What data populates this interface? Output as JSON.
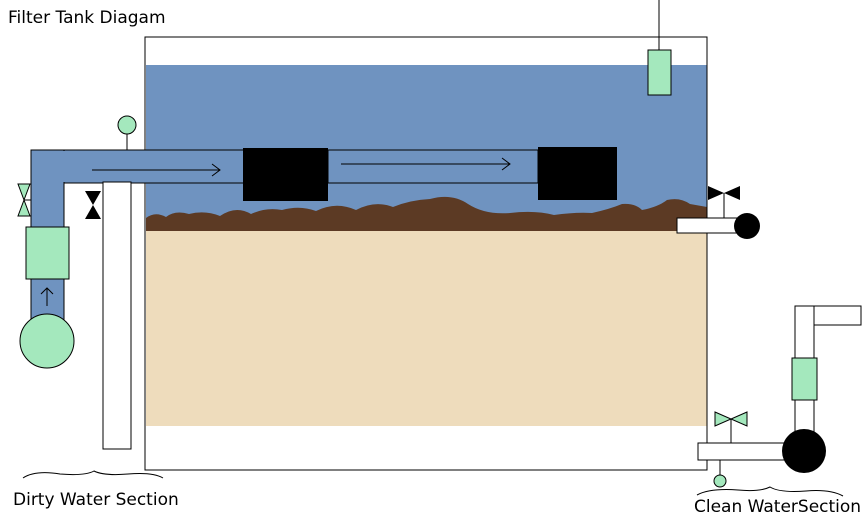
{
  "title": "Filter Tank Diagam",
  "labels": {
    "dirty": "Dirty Water Section",
    "clean": "Clean WaterSection"
  },
  "colors": {
    "water": "#6f93c0",
    "sediment": "#5c3a24",
    "sand": "#eedcbc",
    "component_green": "#a4e8bd",
    "filter_block": "#000000",
    "outline": "#000000"
  }
}
